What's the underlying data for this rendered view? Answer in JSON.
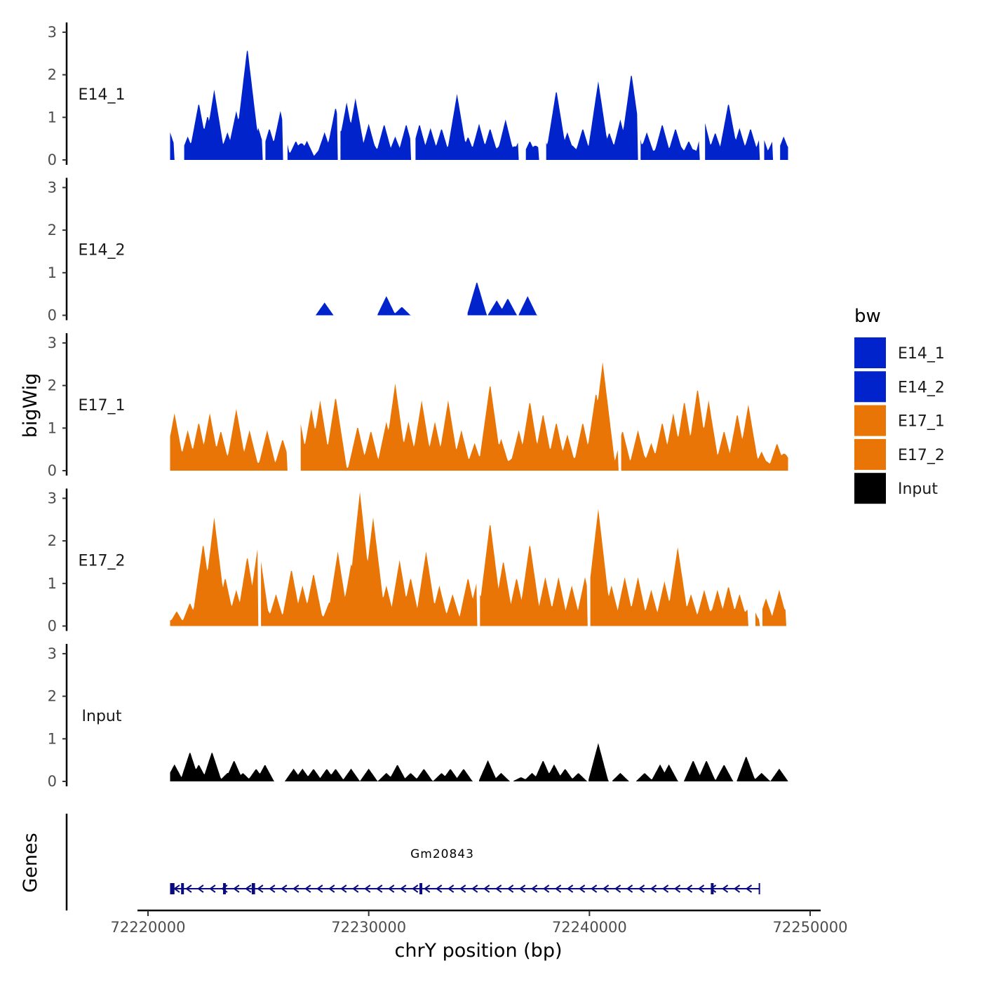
{
  "chart_data": {
    "type": "area",
    "title": "",
    "xlabel": "chrY position (bp)",
    "ylabel": "bigWig",
    "genes_label": "Genes",
    "xlim": [
      72220000,
      72250000
    ],
    "ylim": [
      0,
      3
    ],
    "y_ticks": [
      "0",
      "1",
      "2",
      "3"
    ],
    "x_ticks": [
      {
        "value": 72220000,
        "label": "72220000"
      },
      {
        "value": 72230000,
        "label": "72230000"
      },
      {
        "value": 72240000,
        "label": "72240000"
      },
      {
        "value": 72250000,
        "label": "72250000"
      }
    ],
    "legend": {
      "title": "bw",
      "entries": [
        {
          "name": "E14_1",
          "color": "#0023CC"
        },
        {
          "name": "E14_2",
          "color": "#0023CC"
        },
        {
          "name": "E17_1",
          "color": "#E87506"
        },
        {
          "name": "E17_2",
          "color": "#E87506"
        },
        {
          "name": "Input",
          "color": "#000000"
        }
      ]
    },
    "series": [
      {
        "name": "E14_1",
        "color": "#0023CC",
        "x_start": 72221000,
        "x_end": 72249000,
        "peaks": [
          [
            72221000,
            0.5
          ],
          [
            72221400,
            0.2
          ],
          [
            72221800,
            0.4
          ],
          [
            72222300,
            1.2
          ],
          [
            72222700,
            0.9
          ],
          [
            72223000,
            1.5
          ],
          [
            72223600,
            0.5
          ],
          [
            72224000,
            1.0
          ],
          [
            72224500,
            2.5
          ],
          [
            72225000,
            0.6
          ],
          [
            72225500,
            0.6
          ],
          [
            72226000,
            1.0
          ],
          [
            72226700,
            0.3
          ],
          [
            72227200,
            0.3
          ],
          [
            72228000,
            0.5
          ],
          [
            72228500,
            1.1
          ],
          [
            72229000,
            1.2
          ],
          [
            72229400,
            1.3
          ],
          [
            72230000,
            0.7
          ],
          [
            72230700,
            0.7
          ],
          [
            72231200,
            0.4
          ],
          [
            72231700,
            0.7
          ],
          [
            72232300,
            0.7
          ],
          [
            72232800,
            0.6
          ],
          [
            72233300,
            0.6
          ],
          [
            72234000,
            1.4
          ],
          [
            72234500,
            0.4
          ],
          [
            72235000,
            0.7
          ],
          [
            72235500,
            0.6
          ],
          [
            72236200,
            0.8
          ],
          [
            72236800,
            0.3
          ],
          [
            72237300,
            0.3
          ],
          [
            72238000,
            0.3
          ],
          [
            72238500,
            1.5
          ],
          [
            72239000,
            0.5
          ],
          [
            72239700,
            0.6
          ],
          [
            72240400,
            1.7
          ],
          [
            72240900,
            0.5
          ],
          [
            72241400,
            0.8
          ],
          [
            72241900,
            1.9
          ],
          [
            72242600,
            0.5
          ],
          [
            72243300,
            0.7
          ],
          [
            72243900,
            0.6
          ],
          [
            72244500,
            0.3
          ],
          [
            72245200,
            0.8
          ],
          [
            72245700,
            0.5
          ],
          [
            72246300,
            1.2
          ],
          [
            72246800,
            0.6
          ],
          [
            72247300,
            0.6
          ],
          [
            72247800,
            0.5
          ],
          [
            72248300,
            0.3
          ],
          [
            72248800,
            0.4
          ]
        ],
        "gaps": [
          [
            72221200,
            72221600
          ],
          [
            72225200,
            72225300
          ],
          [
            72226100,
            72226300
          ],
          [
            72228600,
            72228700
          ],
          [
            72231900,
            72232100
          ],
          [
            72236800,
            72237100
          ],
          [
            72237700,
            72238000
          ],
          [
            72242200,
            72242300
          ],
          [
            72245000,
            72245200
          ],
          [
            72247700,
            72247900
          ],
          [
            72248300,
            72248600
          ]
        ]
      },
      {
        "name": "E14_2",
        "color": "#0023CC",
        "x_start": 72221000,
        "x_end": 72249000,
        "peaks": [
          [
            72228000,
            0.3
          ],
          [
            72230800,
            0.45
          ],
          [
            72231500,
            0.2
          ],
          [
            72234900,
            0.8
          ],
          [
            72235800,
            0.35
          ],
          [
            72236300,
            0.4
          ],
          [
            72237200,
            0.45
          ]
        ],
        "gaps": []
      },
      {
        "name": "E17_1",
        "color": "#E87506",
        "x_start": 72221000,
        "x_end": 72249000,
        "peaks": [
          [
            72221200,
            1.2
          ],
          [
            72221800,
            0.8
          ],
          [
            72222300,
            1.0
          ],
          [
            72222800,
            1.2
          ],
          [
            72223300,
            0.8
          ],
          [
            72224000,
            1.3
          ],
          [
            72224600,
            0.8
          ],
          [
            72225400,
            0.8
          ],
          [
            72226100,
            0.6
          ],
          [
            72226800,
            1.3
          ],
          [
            72227400,
            1.3
          ],
          [
            72227800,
            1.5
          ],
          [
            72228500,
            1.6
          ],
          [
            72229500,
            0.9
          ],
          [
            72230100,
            0.8
          ],
          [
            72230800,
            1.0
          ],
          [
            72231200,
            1.9
          ],
          [
            72231800,
            1.0
          ],
          [
            72232400,
            1.5
          ],
          [
            72233000,
            1.0
          ],
          [
            72233600,
            1.5
          ],
          [
            72234200,
            0.8
          ],
          [
            72234800,
            0.5
          ],
          [
            72235500,
            1.9
          ],
          [
            72236000,
            0.6
          ],
          [
            72236800,
            0.8
          ],
          [
            72237300,
            1.5
          ],
          [
            72237900,
            1.2
          ],
          [
            72238500,
            1.0
          ],
          [
            72239000,
            0.7
          ],
          [
            72239700,
            1.0
          ],
          [
            72240300,
            1.7
          ],
          [
            72240600,
            2.4
          ],
          [
            72241500,
            0.8
          ],
          [
            72242200,
            0.8
          ],
          [
            72242800,
            0.5
          ],
          [
            72243300,
            1.0
          ],
          [
            72243800,
            1.2
          ],
          [
            72244300,
            1.5
          ],
          [
            72244900,
            1.8
          ],
          [
            72245400,
            1.5
          ],
          [
            72246100,
            0.8
          ],
          [
            72246700,
            1.2
          ],
          [
            72247200,
            1.4
          ],
          [
            72247800,
            0.3
          ],
          [
            72248500,
            0.5
          ]
        ],
        "gaps": [
          [
            72226300,
            72226900
          ],
          [
            72241300,
            72241400
          ]
        ]
      },
      {
        "name": "E17_2",
        "color": "#E87506",
        "x_start": 72221000,
        "x_end": 72249000,
        "peaks": [
          [
            72221300,
            0.2
          ],
          [
            72221900,
            0.4
          ],
          [
            72222500,
            1.8
          ],
          [
            72223000,
            2.4
          ],
          [
            72223500,
            1.0
          ],
          [
            72224000,
            0.7
          ],
          [
            72224500,
            1.5
          ],
          [
            72225000,
            1.8
          ],
          [
            72225800,
            0.6
          ],
          [
            72226500,
            1.2
          ],
          [
            72227000,
            0.8
          ],
          [
            72227500,
            1.1
          ],
          [
            72228200,
            0.4
          ],
          [
            72228600,
            1.6
          ],
          [
            72229200,
            1.3
          ],
          [
            72229600,
            3.0
          ],
          [
            72230200,
            2.4
          ],
          [
            72230800,
            0.8
          ],
          [
            72231400,
            1.4
          ],
          [
            72231900,
            1.0
          ],
          [
            72232600,
            1.6
          ],
          [
            72233200,
            0.8
          ],
          [
            72233800,
            0.6
          ],
          [
            72234500,
            1.0
          ],
          [
            72234900,
            0.9
          ],
          [
            72235500,
            2.3
          ],
          [
            72236100,
            1.4
          ],
          [
            72236700,
            1.0
          ],
          [
            72237300,
            1.8
          ],
          [
            72238000,
            1.0
          ],
          [
            72238600,
            1.0
          ],
          [
            72239200,
            0.8
          ],
          [
            72239800,
            1.0
          ],
          [
            72240400,
            2.6
          ],
          [
            72241000,
            0.8
          ],
          [
            72241600,
            1.0
          ],
          [
            72242200,
            1.0
          ],
          [
            72242800,
            0.7
          ],
          [
            72243400,
            0.9
          ],
          [
            72244000,
            1.7
          ],
          [
            72244600,
            0.6
          ],
          [
            72245200,
            0.7
          ],
          [
            72245800,
            0.7
          ],
          [
            72246300,
            0.8
          ],
          [
            72246800,
            0.6
          ],
          [
            72247400,
            0.3
          ],
          [
            72248000,
            0.5
          ],
          [
            72248600,
            0.7
          ]
        ],
        "gaps": [
          [
            72225000,
            72225100
          ],
          [
            72234900,
            72235000
          ],
          [
            72239900,
            72240000
          ],
          [
            72247200,
            72247500
          ],
          [
            72247700,
            72247800
          ],
          [
            72248900,
            72249000
          ]
        ]
      },
      {
        "name": "Input",
        "color": "#000000",
        "x_start": 72221000,
        "x_end": 72249000,
        "peaks": [
          [
            72221200,
            0.4
          ],
          [
            72221900,
            0.7
          ],
          [
            72222300,
            0.4
          ],
          [
            72222900,
            0.7
          ],
          [
            72223600,
            0.2
          ],
          [
            72223900,
            0.5
          ],
          [
            72224300,
            0.2
          ],
          [
            72224900,
            0.3
          ],
          [
            72225300,
            0.4
          ],
          [
            72226600,
            0.3
          ],
          [
            72227000,
            0.3
          ],
          [
            72227500,
            0.3
          ],
          [
            72228100,
            0.3
          ],
          [
            72228500,
            0.3
          ],
          [
            72229200,
            0.3
          ],
          [
            72230000,
            0.3
          ],
          [
            72230800,
            0.2
          ],
          [
            72231300,
            0.4
          ],
          [
            72231900,
            0.2
          ],
          [
            72232500,
            0.3
          ],
          [
            72233300,
            0.2
          ],
          [
            72233700,
            0.3
          ],
          [
            72234300,
            0.3
          ],
          [
            72235400,
            0.5
          ],
          [
            72236000,
            0.2
          ],
          [
            72236900,
            0.1
          ],
          [
            72237400,
            0.2
          ],
          [
            72237900,
            0.5
          ],
          [
            72238400,
            0.4
          ],
          [
            72238900,
            0.3
          ],
          [
            72239500,
            0.2
          ],
          [
            72240400,
            0.9
          ],
          [
            72241400,
            0.2
          ],
          [
            72242500,
            0.2
          ],
          [
            72243200,
            0.4
          ],
          [
            72243600,
            0.4
          ],
          [
            72244700,
            0.5
          ],
          [
            72245300,
            0.5
          ],
          [
            72246100,
            0.4
          ],
          [
            72247100,
            0.6
          ],
          [
            72247800,
            0.2
          ],
          [
            72248600,
            0.3
          ]
        ],
        "gaps": []
      }
    ],
    "gene": {
      "name": "Gm20843",
      "strand": "-",
      "color": "#0B0B80",
      "start": 72221000,
      "end": 72247700,
      "exons": [
        [
          72221000,
          72221200
        ],
        [
          72221500,
          72221600
        ],
        [
          72223400,
          72223500
        ],
        [
          72224700,
          72224850
        ],
        [
          72232300,
          72232400
        ],
        [
          72245500,
          72245600
        ]
      ]
    }
  }
}
